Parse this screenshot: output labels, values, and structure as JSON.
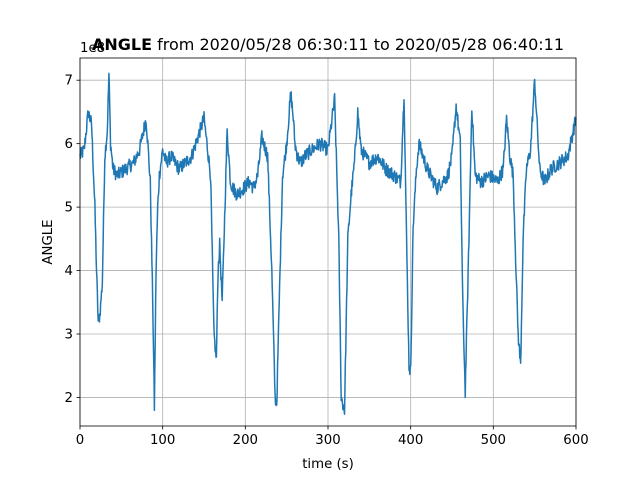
{
  "chart_data": {
    "type": "line",
    "title_bold": "ANGLE",
    "title_rest": " from 2020/05/28 06:30:11 to 2020/05/28 06:40:11",
    "xlabel": "time (s)",
    "ylabel": "ANGLE",
    "y_offset_label": "1e8",
    "xlim": [
      0,
      600
    ],
    "ylim": [
      1.55,
      7.35
    ],
    "xticks": [
      0,
      100,
      200,
      300,
      400,
      500,
      600
    ],
    "yticks": [
      2,
      3,
      4,
      5,
      6,
      7
    ],
    "grid": true,
    "line_color": "#1f77b4",
    "series": [
      {
        "x": [
          0,
          5,
          10,
          14,
          18,
          20,
          22,
          24,
          27,
          30,
          33,
          35,
          37,
          40,
          45,
          55,
          65,
          72,
          80,
          85,
          88,
          90,
          92,
          94,
          96,
          98,
          100,
          104,
          110,
          120,
          135,
          150,
          158,
          162,
          165,
          167,
          169,
          172,
          178,
          182,
          185,
          190,
          198,
          205,
          210,
          215,
          220,
          227,
          232,
          236,
          238,
          241,
          245,
          250,
          255,
          258,
          260,
          263,
          267,
          272,
          280,
          290,
          300,
          308,
          313,
          316,
          320,
          324,
          328,
          332,
          336,
          340,
          350,
          360,
          370,
          380,
          388,
          392,
          395,
          398,
          400,
          403,
          407,
          410,
          415,
          420,
          428,
          432,
          438,
          445,
          450,
          455,
          460,
          463,
          466,
          470,
          474,
          478,
          485,
          495,
          505,
          512,
          516,
          520,
          524,
          527,
          530,
          533,
          536,
          540,
          545,
          550,
          556,
          562,
          570,
          580,
          590,
          600
        ],
        "y": [
          5.8,
          5.9,
          6.5,
          6.3,
          5.0,
          4.0,
          3.2,
          3.3,
          3.8,
          5.8,
          6.2,
          7.1,
          6.0,
          5.6,
          5.5,
          5.6,
          5.7,
          5.9,
          6.4,
          5.4,
          3.5,
          1.85,
          4.0,
          5.0,
          5.5,
          5.7,
          5.9,
          5.7,
          5.8,
          5.6,
          5.8,
          6.4,
          5.5,
          3.0,
          2.6,
          4.0,
          4.4,
          3.5,
          6.2,
          5.4,
          5.3,
          5.2,
          5.3,
          5.4,
          5.3,
          5.5,
          6.1,
          5.8,
          4.0,
          2.0,
          1.9,
          3.5,
          5.5,
          6.0,
          6.8,
          6.4,
          6.0,
          5.8,
          5.7,
          5.8,
          5.9,
          6.0,
          5.9,
          6.7,
          4.5,
          2.0,
          1.8,
          4.5,
          5.2,
          5.7,
          6.5,
          5.9,
          5.7,
          5.8,
          5.6,
          5.5,
          5.4,
          6.8,
          4.5,
          2.5,
          2.4,
          4.7,
          5.6,
          6.0,
          5.8,
          5.6,
          5.4,
          5.3,
          5.4,
          5.5,
          5.8,
          6.6,
          6.0,
          3.5,
          2.1,
          4.2,
          6.6,
          5.5,
          5.4,
          5.5,
          5.4,
          5.6,
          6.4,
          5.8,
          5.5,
          4.2,
          3.0,
          2.5,
          4.5,
          5.6,
          5.9,
          7.0,
          5.6,
          5.4,
          5.6,
          5.7,
          5.8,
          6.4
        ]
      }
    ]
  }
}
